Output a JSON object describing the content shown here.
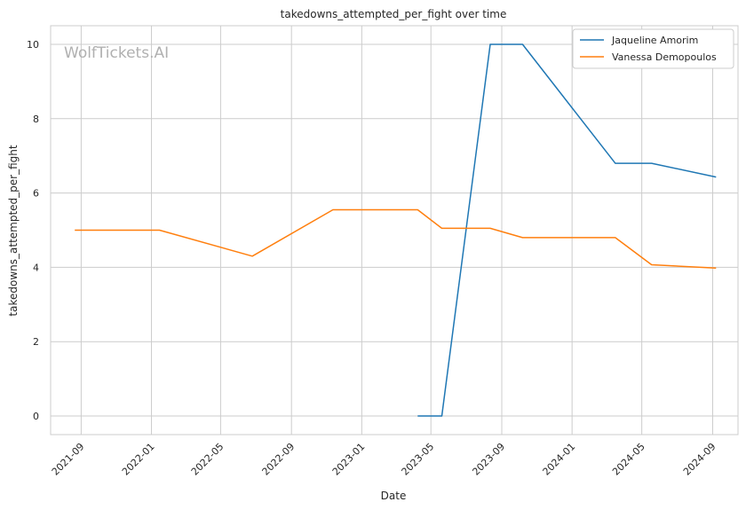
{
  "chart_data": {
    "type": "line",
    "title": "takedowns_attempted_per_fight over time",
    "xlabel": "Date",
    "ylabel": "takedowns_attempted_per_fight",
    "watermark": "WolfTickets.AI",
    "x_ticks": [
      "2021-09",
      "2022-01",
      "2022-05",
      "2022-09",
      "2023-01",
      "2023-05",
      "2023-09",
      "2024-01",
      "2024-05",
      "2024-09"
    ],
    "y_ticks": [
      0,
      2,
      4,
      6,
      8,
      10
    ],
    "xlim": [
      "2021-07-10",
      "2024-10-15"
    ],
    "ylim": [
      -0.5,
      10.5
    ],
    "grid": true,
    "legend_position": "top-right",
    "series": [
      {
        "name": "Jaqueline Amorim",
        "color": "#1f77b4",
        "x": [
          "2023-04-08",
          "2023-05-20",
          "2023-08-12",
          "2023-10-07",
          "2024-03-16",
          "2024-05-18",
          "2024-09-07"
        ],
        "y": [
          0,
          0,
          10,
          10,
          6.8,
          6.8,
          6.43
        ]
      },
      {
        "name": "Vanessa Demopoulos",
        "color": "#ff7f0e",
        "x": [
          "2021-08-21",
          "2022-01-15",
          "2022-06-25",
          "2022-11-12",
          "2023-04-08",
          "2023-05-20",
          "2023-08-12",
          "2023-10-07",
          "2024-03-16",
          "2024-05-18",
          "2024-09-07"
        ],
        "y": [
          5,
          5,
          4.3,
          5.55,
          5.55,
          5.05,
          5.05,
          4.8,
          4.8,
          4.07,
          3.98
        ]
      }
    ]
  }
}
